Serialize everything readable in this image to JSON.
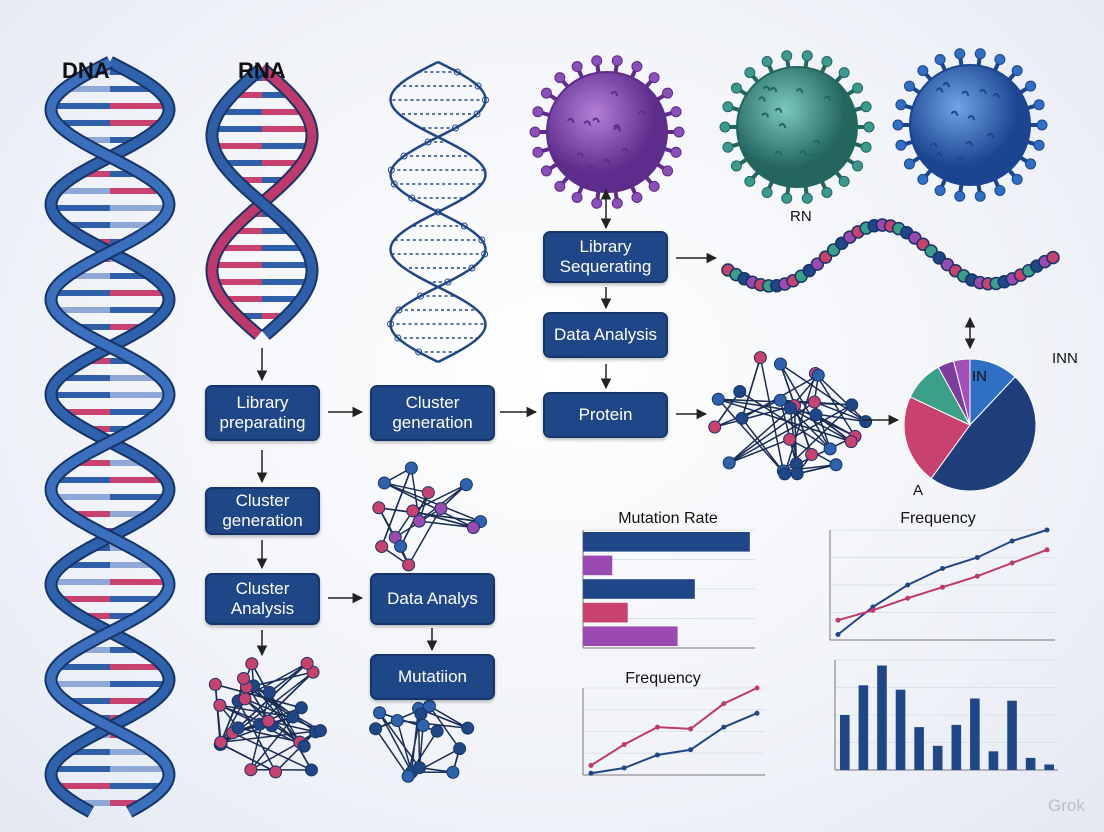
{
  "labels": {
    "dna": "DNA",
    "rna": "RNA",
    "rn": "RN",
    "in": "IN",
    "inn": "INN",
    "a": "A",
    "watermark": "Grok"
  },
  "nodes": [
    {
      "label": "Library preparating"
    },
    {
      "label": "Cluster generation"
    },
    {
      "label": "Library Sequerating"
    },
    {
      "label": "Data Analysis"
    },
    {
      "label": "Protein"
    },
    {
      "label": "Cluster generation"
    },
    {
      "label": "Cluster Analysis"
    },
    {
      "label": "Data Analys"
    },
    {
      "label": "Mutatiion"
    }
  ],
  "charts": [
    {
      "type": "pie",
      "values": [
        12,
        48,
        22,
        10,
        4,
        4
      ],
      "colors": [
        "#2f6fc4",
        "#1f3f7c",
        "#c9416f",
        "#3aa08a",
        "#7c3d9c",
        "#a34fb8"
      ]
    },
    {
      "type": "barh",
      "title": "Mutation Rate",
      "values": [
        97,
        17,
        65,
        26,
        55
      ],
      "colors": [
        "#1f4788",
        "#9a4ab0",
        "#1f4788",
        "#c9416f",
        "#9a4ab0"
      ],
      "xlim": [
        0,
        100
      ]
    },
    {
      "type": "line",
      "title": "Frequency",
      "x": [
        1,
        2,
        3,
        4,
        5,
        6,
        7
      ],
      "ylim": [
        0,
        100
      ],
      "series": [
        {
          "color": "#1f4788",
          "values": [
            5,
            30,
            50,
            65,
            75,
            90,
            100
          ]
        },
        {
          "color": "#c0396c",
          "values": [
            18,
            27,
            38,
            48,
            58,
            70,
            82
          ]
        }
      ]
    },
    {
      "type": "line",
      "title": "Frequency",
      "x": [
        1,
        2,
        3,
        4,
        5,
        6
      ],
      "ylim": [
        0,
        100
      ],
      "series": [
        {
          "color": "#1f4788",
          "values": [
            2,
            8,
            23,
            29,
            55,
            71
          ]
        },
        {
          "color": "#c0396c",
          "values": [
            11,
            35,
            55,
            53,
            82,
            100
          ]
        }
      ]
    },
    {
      "type": "bar",
      "values": [
        50,
        77,
        95,
        73,
        39,
        22,
        41,
        65,
        17,
        63,
        11,
        5
      ],
      "color": "#1f4788",
      "ylim": [
        0,
        100
      ]
    }
  ]
}
